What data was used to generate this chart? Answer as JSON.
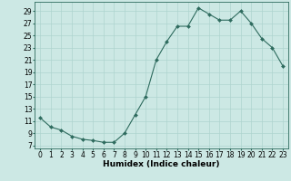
{
  "x": [
    0,
    1,
    2,
    3,
    4,
    5,
    6,
    7,
    8,
    9,
    10,
    11,
    12,
    13,
    14,
    15,
    16,
    17,
    18,
    19,
    20,
    21,
    22,
    23
  ],
  "y": [
    11.5,
    10.0,
    9.5,
    8.5,
    8.0,
    7.8,
    7.5,
    7.5,
    9.0,
    12.0,
    15.0,
    21.0,
    24.0,
    26.5,
    26.5,
    29.5,
    28.5,
    27.5,
    27.5,
    29.0,
    27.0,
    24.5,
    23.0,
    20.0
  ],
  "xlabel": "Humidex (Indice chaleur)",
  "xlim": [
    -0.5,
    23.5
  ],
  "ylim": [
    6.5,
    30.5
  ],
  "yticks": [
    7,
    9,
    11,
    13,
    15,
    17,
    19,
    21,
    23,
    25,
    27,
    29
  ],
  "xticks": [
    0,
    1,
    2,
    3,
    4,
    5,
    6,
    7,
    8,
    9,
    10,
    11,
    12,
    13,
    14,
    15,
    16,
    17,
    18,
    19,
    20,
    21,
    22,
    23
  ],
  "line_color": "#2e6b5e",
  "marker_color": "#2e6b5e",
  "bg_color": "#cce8e4",
  "grid_color": "#aed4cf",
  "label_fontsize": 6.5,
  "tick_fontsize": 5.5
}
